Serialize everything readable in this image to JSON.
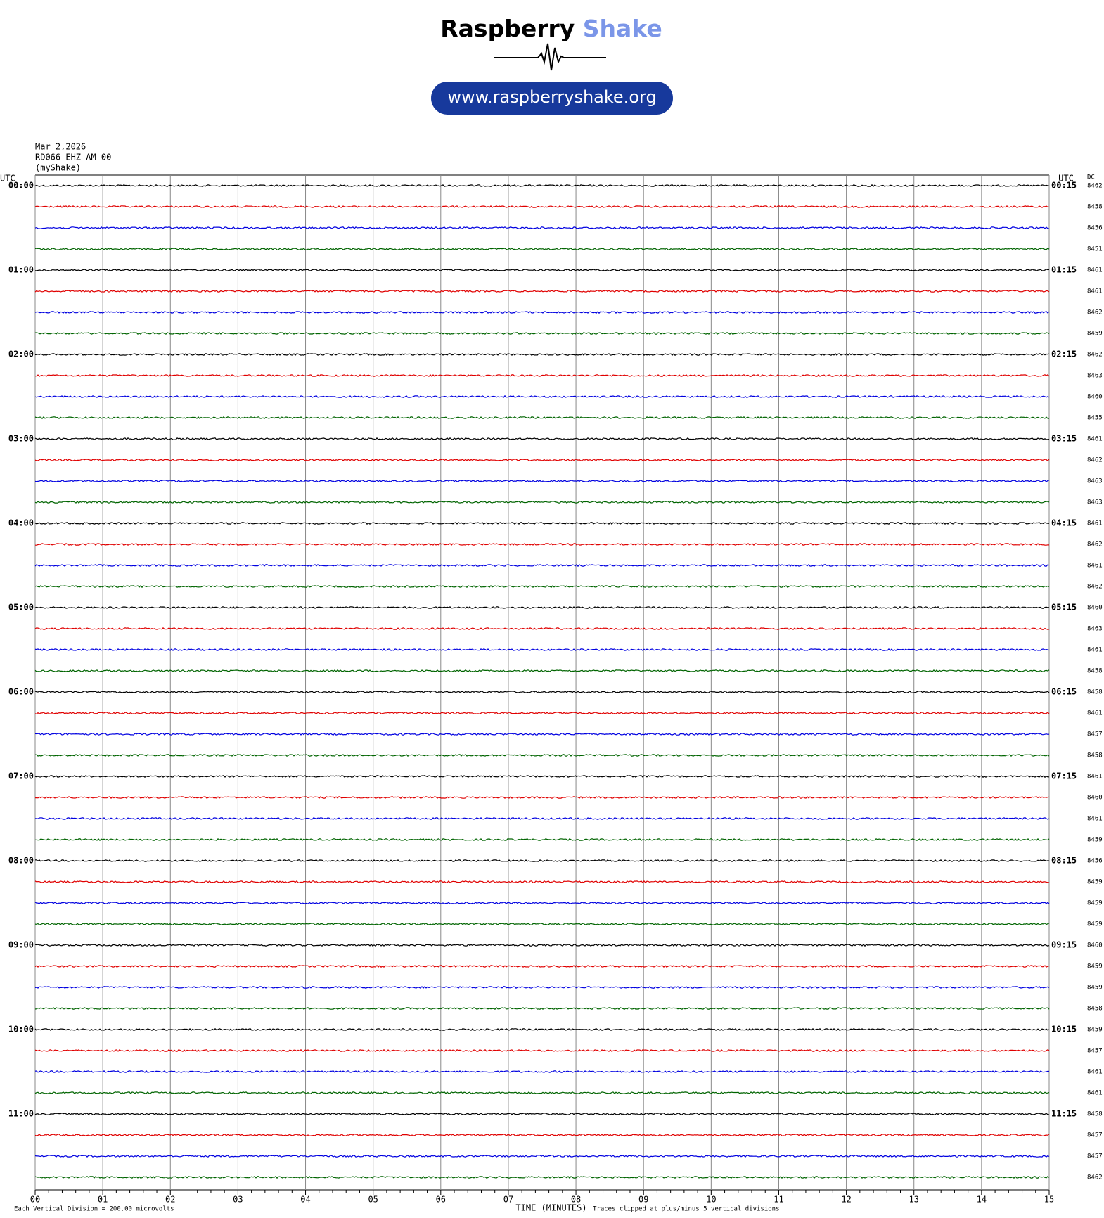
{
  "chart_data": {
    "type": "helicorder",
    "logo": [
      "Raspberry",
      "Shake"
    ],
    "url": "www.raspberryshake.org",
    "date": "Mar 2,2026",
    "station": "RD066 EHZ AM 00",
    "source": "(myShake)",
    "left_title": "UTC",
    "right_title": "UTC",
    "dc_title": "DC",
    "left_labels": [
      "00:00",
      "01:00",
      "02:00",
      "03:00",
      "04:00",
      "05:00",
      "06:00",
      "07:00",
      "08:00",
      "09:00",
      "10:00",
      "11:00"
    ],
    "right_labels": [
      "00:15",
      "01:15",
      "02:15",
      "03:15",
      "04:15",
      "05:15",
      "06:15",
      "07:15",
      "08:15",
      "09:15",
      "10:15",
      "11:15"
    ],
    "dc_values": [
      8462,
      8458,
      8456,
      8451,
      8461,
      8461,
      8462,
      8459,
      8462,
      8463,
      8460,
      8455,
      8461,
      8462,
      8463,
      8463,
      8461,
      8462,
      8461,
      8462,
      8460,
      8463,
      8461,
      8458,
      8458,
      8461,
      8457,
      8458,
      8461,
      8460,
      8461,
      8459,
      8456,
      8459,
      8459,
      8459,
      8460,
      8459,
      8459,
      8458,
      8459,
      8457,
      8461,
      8461,
      8458,
      8457,
      8457,
      8462
    ],
    "colors": [
      "#000000",
      "#e00000",
      "#0000e0",
      "#006400"
    ],
    "xlim": [
      0,
      15
    ],
    "xticks": [
      {
        "value": 0,
        "label": "00"
      },
      {
        "value": 1,
        "label": "01"
      },
      {
        "value": 2,
        "label": "02"
      },
      {
        "value": 3,
        "label": "03"
      },
      {
        "value": 4,
        "label": "04"
      },
      {
        "value": 5,
        "label": "05"
      },
      {
        "value": 6,
        "label": "06"
      },
      {
        "value": 7,
        "label": "07"
      },
      {
        "value": 8,
        "label": "08"
      },
      {
        "value": 9,
        "label": "09"
      },
      {
        "value": 10,
        "label": "10"
      },
      {
        "value": 11,
        "label": "11"
      },
      {
        "value": 12,
        "label": "12"
      },
      {
        "value": 13,
        "label": "13"
      },
      {
        "value": 14,
        "label": "14"
      },
      {
        "value": 15,
        "label": "15"
      }
    ],
    "xlabel": "TIME (MINUTES)",
    "scale_note": "Each Vertical Division =  200.00 microvolts",
    "clip_note": "Traces clipped at plus/minus 5 vertical divisions"
  }
}
